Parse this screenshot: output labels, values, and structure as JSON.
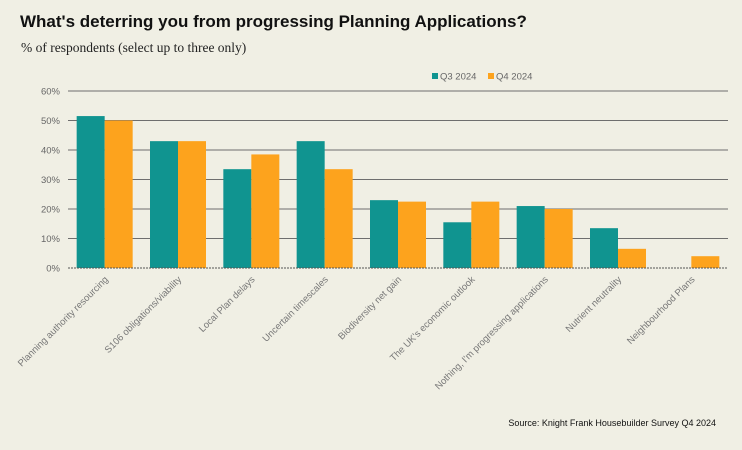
{
  "chart_data": {
    "type": "bar",
    "title": "What's deterring you from progressing Planning Applications?",
    "subtitle": "% of respondents (select up to three only)",
    "xlabel": "",
    "ylabel": "",
    "ylim": [
      0,
      60
    ],
    "yticks": [
      0,
      10,
      20,
      30,
      40,
      50,
      60
    ],
    "ytick_labels": [
      "0%",
      "10%",
      "20%",
      "30%",
      "40%",
      "50%",
      "60%"
    ],
    "grid": true,
    "legend_position": "top-center",
    "categories": [
      "Planning authority resourcing",
      "S106 obligations/viability",
      "Local Plan delays",
      "Uncertain timescales",
      "Biodiversity net gain",
      "The UK's economic outlook",
      "Nothing, I'm progressing applications",
      "Nutrient neutrality",
      "Neighbourhood Plans"
    ],
    "series": [
      {
        "name": "Q3 2024",
        "color": "#109490",
        "values": [
          51.5,
          43,
          33.5,
          43,
          23,
          15.5,
          21,
          13.5,
          0
        ]
      },
      {
        "name": "Q4 2024",
        "color": "#fda31d",
        "values": [
          50,
          43,
          38.5,
          33.5,
          22.5,
          22.5,
          20,
          6.5,
          4
        ]
      }
    ],
    "source": "Source: Knight Frank Housebuilder Survey Q4 2024"
  }
}
